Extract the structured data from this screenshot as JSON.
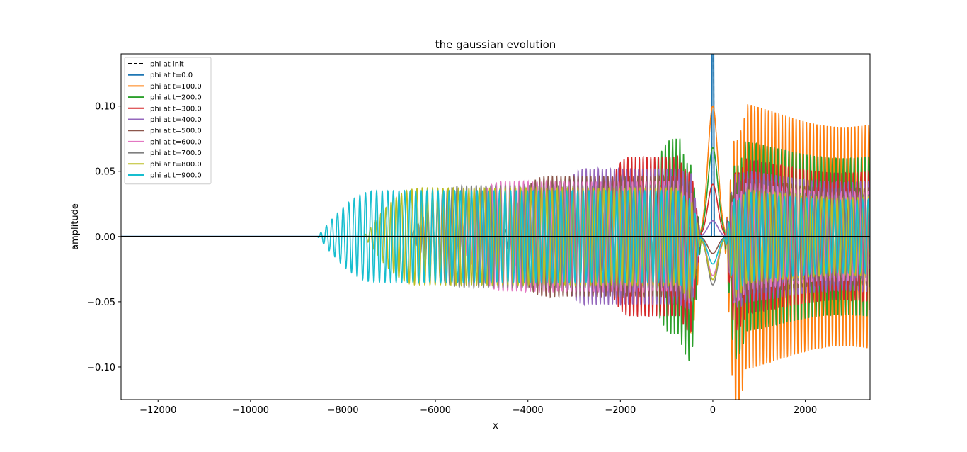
{
  "chart_data": {
    "type": "line",
    "title": "the gaussian evolution",
    "xlabel": "x",
    "ylabel": "amplitude",
    "xlim": [
      -12800,
      3400
    ],
    "ylim": [
      -0.125,
      0.14
    ],
    "xticks": [
      -12000,
      -10000,
      -8000,
      -6000,
      -4000,
      -2000,
      0,
      2000
    ],
    "xtick_labels": [
      "−12000",
      "−10000",
      "−8000",
      "−6000",
      "−4000",
      "−2000",
      "0",
      "2000"
    ],
    "yticks": [
      -0.1,
      -0.05,
      0.0,
      0.05,
      0.1
    ],
    "ytick_labels": [
      "−0.10",
      "−0.05",
      "0.00",
      "0.05",
      "0.10"
    ],
    "grid": false,
    "legend_position": "upper-left",
    "series": [
      {
        "name": "phi at init",
        "color": "#000000",
        "dashed": true,
        "t": null,
        "center_peak": 0.14
      },
      {
        "name": "phi at t=0.0",
        "color": "#1f77b4",
        "dashed": false,
        "t": 0,
        "center_peak": 0.14
      },
      {
        "name": "phi at t=100.0",
        "color": "#ff7f0e",
        "dashed": false,
        "t": 100,
        "center_peak": 0.1,
        "envelope_max": 0.105,
        "front_x": -700
      },
      {
        "name": "phi at t=200.0",
        "color": "#2ca02c",
        "dashed": false,
        "t": 200,
        "center_peak": 0.068,
        "envelope_max": 0.075,
        "front_x": -1650
      },
      {
        "name": "phi at t=300.0",
        "color": "#d62728",
        "dashed": false,
        "t": 300,
        "center_peak": 0.04,
        "envelope_max": 0.061,
        "front_x": -2600
      },
      {
        "name": "phi at t=400.0",
        "color": "#9467bd",
        "dashed": false,
        "t": 400,
        "center_peak": 0.012,
        "envelope_max": 0.052,
        "front_x": -3600
      },
      {
        "name": "phi at t=500.0",
        "color": "#8c564b",
        "dashed": false,
        "t": 500,
        "center_peak": -0.013,
        "envelope_max": 0.046,
        "front_x": -4550
      },
      {
        "name": "phi at t=600.0",
        "color": "#e377c2",
        "dashed": false,
        "t": 600,
        "center_peak": -0.03,
        "envelope_max": 0.042,
        "front_x": -5550
      },
      {
        "name": "phi at t=700.0",
        "color": "#7f7f7f",
        "dashed": false,
        "t": 700,
        "center_peak": -0.037,
        "envelope_max": 0.039,
        "front_x": -6550
      },
      {
        "name": "phi at t=800.0",
        "color": "#bcbd22",
        "dashed": false,
        "t": 800,
        "center_peak": -0.033,
        "envelope_max": 0.037,
        "front_x": -7550
      },
      {
        "name": "phi at t=900.0",
        "color": "#17becf",
        "dashed": false,
        "t": 900,
        "center_peak": -0.021,
        "envelope_max": 0.035,
        "front_x": -8550
      }
    ]
  }
}
